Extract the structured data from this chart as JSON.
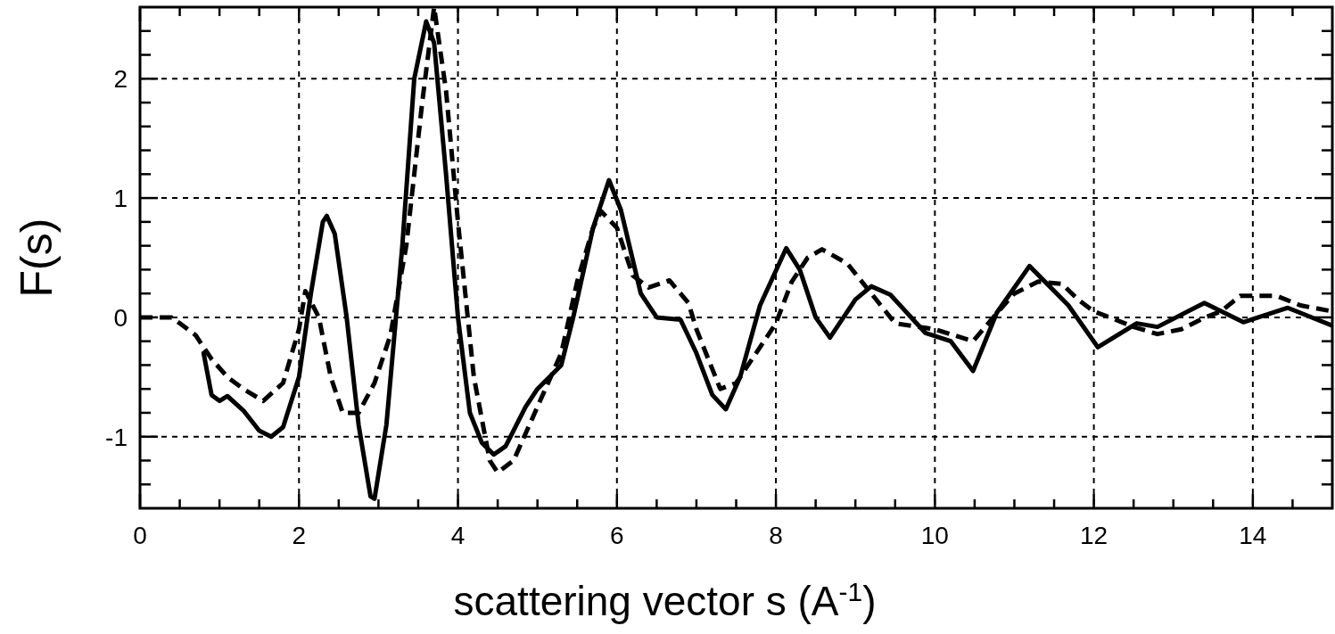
{
  "chart_data": {
    "type": "line",
    "xlabel": "scattering vector  s (A$^{-1}$)",
    "ylabel": "F(s)",
    "xlim": [
      0,
      15
    ],
    "ylim": [
      -1.6,
      2.6
    ],
    "xticks": [
      0,
      {
        "value": 0.5,
        "label": null
      },
      {
        "value": 1,
        "label": null
      },
      {
        "value": 1.5,
        "label": null
      },
      2,
      {
        "value": 2.5,
        "label": null
      },
      {
        "value": 3,
        "label": null
      },
      {
        "value": 3.5,
        "label": null
      },
      4,
      {
        "value": 4.5,
        "label": null
      },
      {
        "value": 5,
        "label": null
      },
      {
        "value": 5.5,
        "label": null
      },
      6,
      {
        "value": 6.5,
        "label": null
      },
      {
        "value": 7,
        "label": null
      },
      {
        "value": 7.5,
        "label": null
      },
      8,
      {
        "value": 8.5,
        "label": null
      },
      {
        "value": 9,
        "label": null
      },
      {
        "value": 9.5,
        "label": null
      },
      10,
      {
        "value": 10.5,
        "label": null
      },
      {
        "value": 11,
        "label": null
      },
      {
        "value": 11.5,
        "label": null
      },
      12,
      {
        "value": 12.5,
        "label": null
      },
      {
        "value": 13,
        "label": null
      },
      {
        "value": 13.5,
        "label": null
      },
      14,
      {
        "value": 14.5,
        "label": null
      }
    ],
    "yticks": [
      {
        "value": -1.4,
        "label": null
      },
      {
        "value": -1.2,
        "label": null
      },
      {
        "value": -1,
        "label": "-1"
      },
      {
        "value": -0.8,
        "label": null
      },
      {
        "value": -0.6,
        "label": null
      },
      {
        "value": -0.4,
        "label": null
      },
      {
        "value": -0.2,
        "label": null
      },
      0,
      {
        "value": 0.2,
        "label": null
      },
      {
        "value": 0.4,
        "label": null
      },
      {
        "value": 0.6,
        "label": null
      },
      {
        "value": 0.8,
        "label": null
      },
      1,
      {
        "value": 1.2,
        "label": null
      },
      {
        "value": 1.4,
        "label": null
      },
      {
        "value": 1.6,
        "label": null
      },
      {
        "value": 1.8,
        "label": null
      },
      2,
      {
        "value": 2.2,
        "label": null
      },
      {
        "value": 2.4,
        "label": null
      }
    ],
    "grid": true,
    "marker": "none",
    "series": [
      {
        "color": "#000000",
        "line_style": "solid",
        "x": [
          0.8,
          0.9,
          1.0,
          1.1,
          1.3,
          1.5,
          1.65,
          1.8,
          2.0,
          2.15,
          2.3,
          2.35,
          2.45,
          2.6,
          2.75,
          2.9,
          2.95,
          3.1,
          3.3,
          3.45,
          3.6,
          3.7,
          3.85,
          4.0,
          4.15,
          4.3,
          4.45,
          4.6,
          4.85,
          5.0,
          5.3,
          5.45,
          5.7,
          5.9,
          6.05,
          6.3,
          6.5,
          6.8,
          7.0,
          7.2,
          7.37,
          7.55,
          7.8,
          8.13,
          8.3,
          8.5,
          8.68,
          9.0,
          9.2,
          9.44,
          9.88,
          10.2,
          10.48,
          10.78,
          11.19,
          11.68,
          12.05,
          12.54,
          12.8,
          13.39,
          13.88,
          14.44,
          15
        ],
        "values": [
          -0.3,
          -0.65,
          -0.7,
          -0.66,
          -0.78,
          -0.95,
          -1.0,
          -0.92,
          -0.5,
          0.2,
          0.8,
          0.85,
          0.7,
          0.0,
          -0.9,
          -1.5,
          -1.52,
          -0.9,
          0.6,
          2.0,
          2.48,
          2.3,
          1.2,
          0.0,
          -0.8,
          -1.05,
          -1.15,
          -1.08,
          -0.75,
          -0.6,
          -0.4,
          0.0,
          0.75,
          1.15,
          0.9,
          0.2,
          0.0,
          -0.02,
          -0.3,
          -0.65,
          -0.77,
          -0.5,
          0.1,
          0.58,
          0.4,
          0.0,
          -0.17,
          0.15,
          0.26,
          0.19,
          -0.13,
          -0.2,
          -0.45,
          0.04,
          0.43,
          0.1,
          -0.25,
          -0.05,
          -0.08,
          0.12,
          -0.04,
          0.08,
          -0.07
        ]
      },
      {
        "color": "#000000",
        "line_style": "dashed",
        "x": [
          0,
          0.4,
          0.5,
          0.7,
          0.8,
          0.9,
          1.1,
          1.3,
          1.55,
          1.8,
          2.0,
          2.08,
          2.25,
          2.4,
          2.55,
          2.75,
          2.95,
          3.15,
          3.35,
          3.55,
          3.7,
          3.85,
          4.0,
          4.2,
          4.4,
          4.5,
          4.7,
          4.9,
          5.1,
          5.3,
          5.5,
          5.7,
          5.8,
          6.0,
          6.2,
          6.4,
          6.66,
          6.9,
          7.0,
          7.3,
          7.5,
          7.8,
          8.0,
          8.2,
          8.4,
          8.58,
          8.9,
          9.2,
          9.5,
          10.0,
          10.48,
          10.8,
          11.0,
          11.3,
          11.6,
          11.8,
          12.0,
          12.2,
          12.5,
          12.8,
          13.1,
          13.4,
          13.6,
          13.84,
          14.3,
          14.6,
          15
        ],
        "values": [
          0,
          0,
          -0.05,
          -0.15,
          -0.25,
          -0.35,
          -0.5,
          -0.6,
          -0.7,
          -0.55,
          -0.1,
          0.22,
          0.0,
          -0.5,
          -0.8,
          -0.8,
          -0.55,
          -0.15,
          0.6,
          1.8,
          2.6,
          1.9,
          0.8,
          -0.5,
          -1.2,
          -1.3,
          -1.2,
          -0.9,
          -0.6,
          -0.3,
          0.3,
          0.75,
          0.89,
          0.75,
          0.35,
          0.25,
          0.31,
          0.12,
          -0.1,
          -0.6,
          -0.55,
          -0.25,
          -0.05,
          0.3,
          0.5,
          0.57,
          0.45,
          0.2,
          -0.05,
          -0.1,
          -0.2,
          0.05,
          0.2,
          0.3,
          0.28,
          0.15,
          0.05,
          0.0,
          -0.08,
          -0.14,
          -0.1,
          0.0,
          0.05,
          0.18,
          0.18,
          0.1,
          0.05
        ]
      }
    ]
  }
}
